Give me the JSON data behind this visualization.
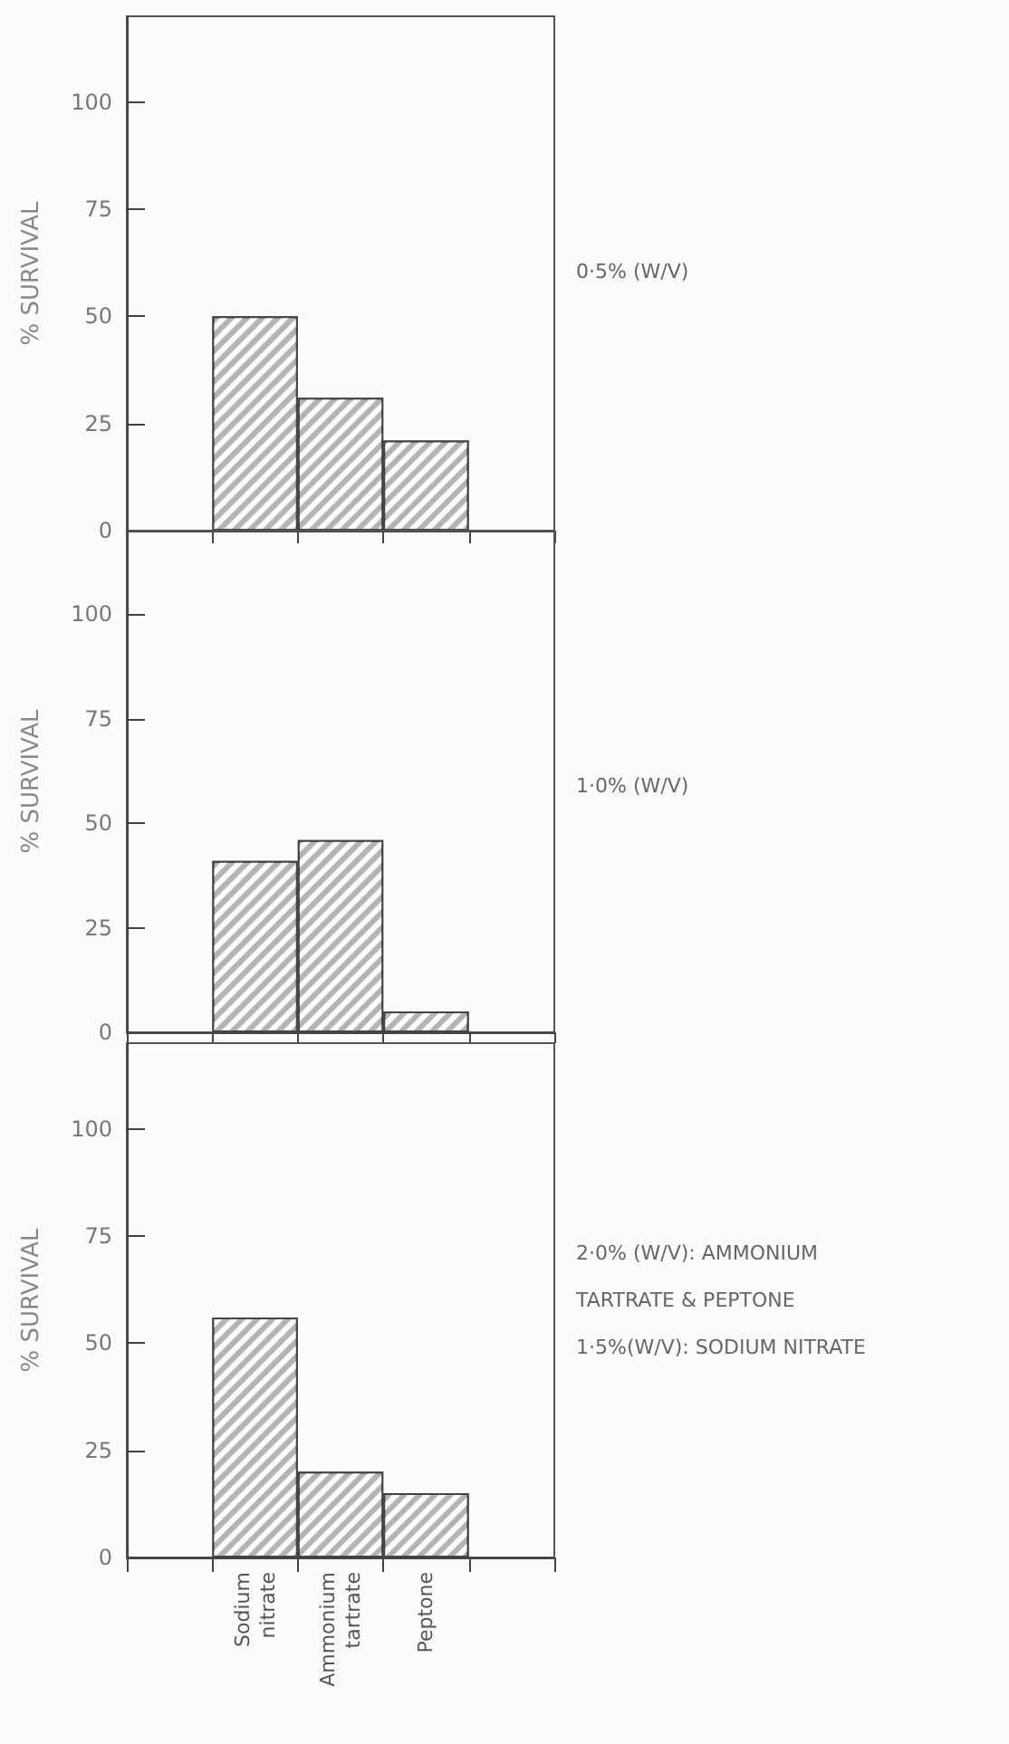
{
  "chart_data": [
    {
      "type": "bar",
      "categories": [
        null,
        null,
        null,
        null,
        null
      ],
      "values": [
        null,
        50,
        31,
        21,
        null
      ],
      "color": "#b4b4b4",
      "ylabel": "% SURVIVAL",
      "ylim": [
        0,
        120
      ],
      "yticks": [
        0,
        25,
        50,
        75,
        100
      ],
      "tick_labels": "y",
      "annotations": [
        "0·5% (W/V)"
      ]
    },
    {
      "type": "bar",
      "categories": [
        null,
        null,
        null,
        null,
        null
      ],
      "values": [
        null,
        41,
        46,
        5,
        null
      ],
      "color": "#b4b4b4",
      "ylabel": "% SURVIVAL",
      "ylim": [
        0,
        120
      ],
      "yticks": [
        0,
        25,
        50,
        75,
        100
      ],
      "tick_labels": "y",
      "annotations": [
        "1·0% (W/V)"
      ]
    },
    {
      "type": "bar",
      "categories": [
        null,
        "Sodium\nnitrate",
        "Ammonium\ntartrate",
        "Peptone",
        null
      ],
      "values": [
        null,
        56,
        20,
        15,
        null
      ],
      "color": "#b4b4b4",
      "ylabel": "% SURVIVAL",
      "ylim": [
        0,
        120
      ],
      "yticks": [
        0,
        25,
        50,
        75,
        100
      ],
      "annotations": [
        "2·0% (W/V): AMMONIUM TARTRATE & PEPTONE",
        "1·5%(W/V): SODIUM NITRATE"
      ]
    }
  ]
}
